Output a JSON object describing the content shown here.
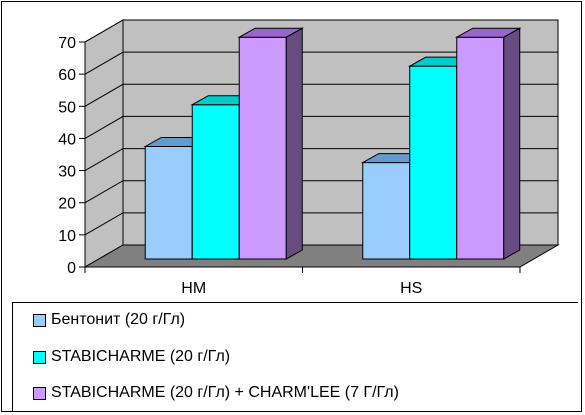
{
  "chart_data": {
    "type": "bar",
    "categories": [
      "HM",
      "HS"
    ],
    "series": [
      {
        "name": "Бентонит (20 г/Гл)",
        "values": [
          35,
          30
        ],
        "color": "#99ccff",
        "side": "#7f99bf",
        "top": "#6699cc"
      },
      {
        "name": "STABICHARME (20 г/Гл)",
        "values": [
          48,
          60
        ],
        "color": "#00ffff",
        "side": "#00a0a0",
        "top": "#00cccc"
      },
      {
        "name": "STABICHARME (20 г/Гл) + CHARM'LEE (7 Г/Гл)",
        "values": [
          69,
          69
        ],
        "color": "#cc99ff",
        "side": "#664c80",
        "top": "#9966cc"
      }
    ],
    "yticks": [
      0,
      10,
      20,
      30,
      40,
      50,
      60,
      70
    ],
    "ylim": [
      0,
      70
    ],
    "grid": true,
    "legend": "bottom",
    "wall_color": "#c0c0c0",
    "floor_color": "#808080"
  },
  "legend": {
    "items": [
      "Бентонит (20 г/Гл)",
      "STABICHARME (20 г/Гл)",
      "STABICHARME (20 г/Гл) + CHARM'LEE (7 Г/Гл)"
    ]
  }
}
